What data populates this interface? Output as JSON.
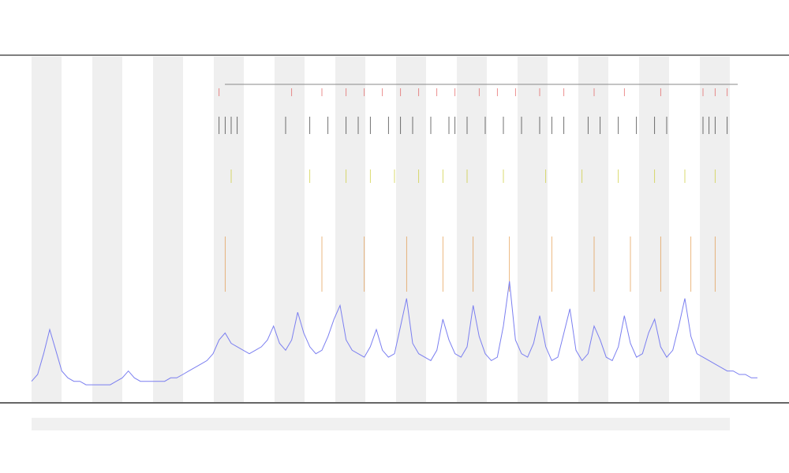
{
  "chart_data": {
    "type": "line",
    "xlim": [
      0,
      120
    ],
    "ylim": [
      0,
      100
    ],
    "series": [
      {
        "color": "#7b7ff0",
        "x": [
          0,
          1,
          2,
          3,
          4,
          5,
          6,
          7,
          8,
          9,
          10,
          11,
          12,
          13,
          14,
          15,
          16,
          17,
          18,
          19,
          20,
          21,
          22,
          23,
          24,
          25,
          26,
          27,
          28,
          29,
          30,
          31,
          32,
          33,
          34,
          35,
          36,
          37,
          38,
          39,
          40,
          41,
          42,
          43,
          44,
          45,
          46,
          47,
          48,
          49,
          50,
          51,
          52,
          53,
          54,
          55,
          56,
          57,
          58,
          59,
          60,
          61,
          62,
          63,
          64,
          65,
          66,
          67,
          68,
          69,
          70,
          71,
          72,
          73,
          74,
          75,
          76,
          77,
          78,
          79,
          80,
          81,
          82,
          83,
          84,
          85,
          86,
          87,
          88,
          89,
          90,
          91,
          92,
          93,
          94,
          95,
          96,
          97,
          98,
          99,
          100,
          101,
          102,
          103,
          104,
          105,
          106,
          107,
          108,
          109,
          110,
          111,
          112,
          113,
          114,
          115,
          116,
          117,
          118,
          119,
          120
        ],
        "values": [
          6,
          8,
          14,
          21,
          15,
          9,
          7,
          6,
          6,
          5,
          5,
          5,
          5,
          5,
          6,
          7,
          9,
          7,
          6,
          6,
          6,
          6,
          6,
          7,
          7,
          8,
          9,
          10,
          11,
          12,
          14,
          18,
          20,
          17,
          16,
          15,
          14,
          15,
          16,
          18,
          22,
          17,
          15,
          18,
          26,
          20,
          16,
          14,
          15,
          19,
          24,
          28,
          18,
          15,
          14,
          13,
          16,
          21,
          15,
          13,
          14,
          22,
          30,
          17,
          14,
          13,
          12,
          15,
          24,
          18,
          14,
          13,
          16,
          28,
          19,
          14,
          12,
          13,
          22,
          35,
          18,
          14,
          13,
          17,
          25,
          16,
          12,
          13,
          20,
          27,
          15,
          12,
          14,
          22,
          18,
          13,
          12,
          16,
          25,
          17,
          13,
          14,
          20,
          24,
          16,
          13,
          15,
          22,
          30,
          19,
          14,
          13,
          12,
          11,
          10,
          9,
          9,
          8,
          8,
          7,
          7
        ]
      }
    ],
    "events": [
      {
        "color": "#e05050",
        "x": [
          31,
          43,
          48,
          52,
          55,
          58,
          61,
          64,
          67,
          70,
          74,
          77,
          80,
          84,
          88,
          93,
          98,
          104,
          111,
          113,
          115
        ]
      },
      {
        "color": "#222222",
        "x": [
          31,
          32,
          33,
          34,
          42,
          46,
          49,
          52,
          54,
          56,
          59,
          61,
          63,
          66,
          69,
          70,
          72,
          75,
          78,
          81,
          84,
          86,
          88,
          92,
          94,
          97,
          100,
          103,
          105,
          111,
          112,
          113,
          115
        ]
      },
      {
        "color": "#c8c820",
        "x": [
          33,
          46,
          52,
          56,
          60,
          64,
          68,
          72,
          78,
          85,
          91,
          97,
          103,
          108,
          113
        ]
      },
      {
        "color": "#e0903a",
        "x": [
          32,
          48,
          55,
          62,
          68,
          73,
          79,
          86,
          93,
          99,
          104,
          109,
          113
        ]
      }
    ]
  }
}
